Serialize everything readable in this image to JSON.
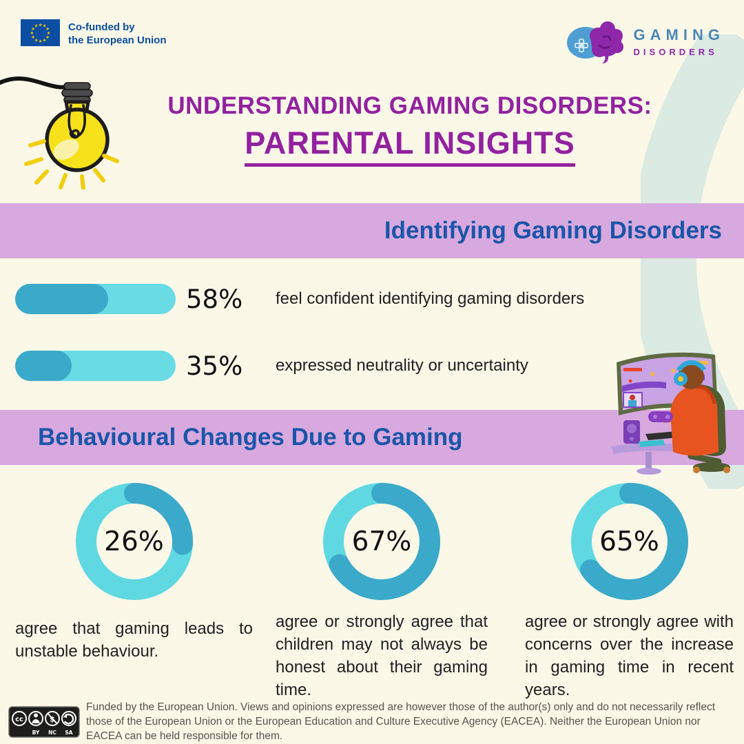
{
  "theme": {
    "bg": "#FBF8E8",
    "banner": "#D7A9DF",
    "purple": "#92229F",
    "blue": "#1B55A8",
    "bar-track": "#68DBE5",
    "bar-fill": "#3BA9C9",
    "donut-rest": "#5FD8E1",
    "donut-fill": "#3BA9C9",
    "body-text": "#1F1F1F",
    "footer-text": "#56544A",
    "swoosh": "#DBEAE2",
    "eu-blue": "#0B4EA2",
    "eu-star": "#FFCC00",
    "brand-blue": "#4C88B8",
    "brand-purple": "#8E27A8"
  },
  "header": {
    "eu": {
      "line1": "Co-funded by",
      "line2": "the European Union"
    },
    "brand": {
      "line1": "GAMING",
      "line2": "DISORDERS"
    }
  },
  "title": {
    "line1": "UNDERSTANDING GAMING DISORDERS:",
    "line2": "PARENTAL INSIGHTS"
  },
  "identify": {
    "heading": "Identifying Gaming Disorders",
    "bars": [
      {
        "value": 58,
        "pct": "58%",
        "text": "feel confident identifying gaming disorders"
      },
      {
        "value": 35,
        "pct": "35%",
        "text": "expressed neutrality or uncertainty"
      }
    ]
  },
  "behaviour": {
    "heading": "Behavioural Changes Due to Gaming",
    "donuts": [
      {
        "value": 26,
        "pct": "26%",
        "text": "agree that gaming leads to unstable behaviour."
      },
      {
        "value": 67,
        "pct": "67%",
        "text": "agree or strongly agree that children may not always be honest about their gaming time."
      },
      {
        "value": 65,
        "pct": "65%",
        "text": "agree or strongly agree with concerns over the increase in gaming time in recent years."
      }
    ]
  },
  "footer": {
    "license_labels": [
      "BY",
      "NC",
      "SA"
    ],
    "disclaimer": "Funded by the European Union. Views and opinions expressed are however those of the author(s) only and do not necessarily reflect those of the European Union or the European Education and Culture Executive Agency (EACEA). Neither the European Union nor EACEA can be held responsible for them."
  },
  "chart_data": [
    {
      "type": "bar",
      "title": "Identifying Gaming Disorders",
      "orientation": "horizontal",
      "categories": [
        "feel confident identifying gaming disorders",
        "expressed neutrality or uncertainty"
      ],
      "values": [
        58,
        35
      ],
      "unit": "%",
      "xlim": [
        0,
        100
      ],
      "grid": false,
      "legend": false,
      "colors": {
        "track": "#68DBE5",
        "fill": "#3BA9C9"
      }
    },
    {
      "type": "pie",
      "variant": "donut",
      "title": "Behavioural Changes Due to Gaming",
      "categories": [
        "agree that gaming leads to unstable behaviour.",
        "agree or strongly agree that children may not always be honest about their gaming time.",
        "agree or strongly agree with concerns over the increase in gaming time in recent years."
      ],
      "values": [
        26,
        67,
        65
      ],
      "unit": "%",
      "colors": {
        "value": "#3BA9C9",
        "remainder": "#5FD8E1"
      }
    }
  ]
}
